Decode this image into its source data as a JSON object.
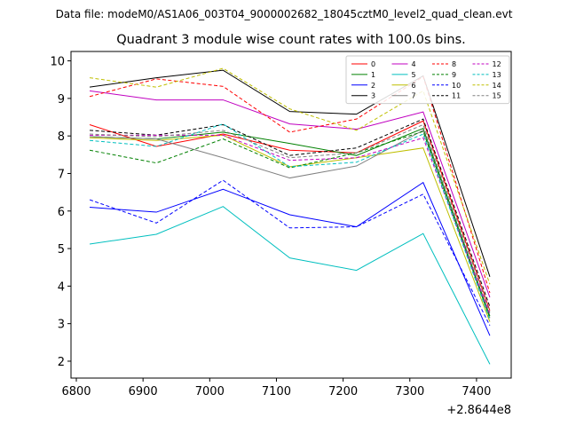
{
  "chart_data": {
    "type": "line",
    "suptitle": "Data file: modeM0/AS1A06_003T04_9000002682_18045cztM0_level2_quad_clean.evt",
    "title": "Quadrant 3 module wise count rates with 100.0s bins.",
    "xlabel": "",
    "ylabel": "",
    "x_offset_label": "+2.8644e8",
    "xlim": [
      6792,
      7452
    ],
    "ylim": [
      1.55,
      10.25
    ],
    "xticks": [
      6800,
      6900,
      7000,
      7100,
      7200,
      7300,
      7400
    ],
    "yticks": [
      2,
      3,
      4,
      5,
      6,
      7,
      8,
      9,
      10
    ],
    "legend_position": "upper right",
    "legend_columns": 4,
    "x": [
      6820,
      6920,
      7020,
      7120,
      7220,
      7320,
      7420
    ],
    "series": [
      {
        "name": "0",
        "color": "#ff0000",
        "style": "solid",
        "values": [
          8.3,
          7.72,
          8.05,
          7.62,
          7.55,
          8.4,
          3.35
        ]
      },
      {
        "name": "1",
        "color": "#008000",
        "style": "solid",
        "values": [
          7.98,
          7.92,
          8.1,
          7.8,
          7.48,
          8.2,
          3.2
        ]
      },
      {
        "name": "2",
        "color": "#0000ff",
        "style": "solid",
        "values": [
          6.1,
          5.97,
          6.58,
          5.9,
          5.58,
          6.76,
          2.68
        ]
      },
      {
        "name": "3",
        "color": "#000000",
        "style": "solid",
        "values": [
          9.3,
          9.55,
          9.75,
          8.65,
          8.58,
          9.6,
          4.25
        ]
      },
      {
        "name": "4",
        "color": "#c000c0",
        "style": "solid",
        "values": [
          9.2,
          8.96,
          8.96,
          8.32,
          8.18,
          8.64,
          3.7
        ]
      },
      {
        "name": "5",
        "color": "#00bfbf",
        "style": "solid",
        "values": [
          5.12,
          5.38,
          6.12,
          4.75,
          4.42,
          5.4,
          1.92
        ]
      },
      {
        "name": "6",
        "color": "#bfbf00",
        "style": "solid",
        "values": [
          7.95,
          7.88,
          8.02,
          7.18,
          7.42,
          7.68,
          3.05
        ]
      },
      {
        "name": "7",
        "color": "#808080",
        "style": "solid",
        "values": [
          7.98,
          7.92,
          7.42,
          6.88,
          7.2,
          8.15,
          3.15
        ]
      },
      {
        "name": "8",
        "color": "#ff0000",
        "style": "dashed",
        "values": [
          9.05,
          9.52,
          9.32,
          8.1,
          8.45,
          9.58,
          3.82
        ]
      },
      {
        "name": "9",
        "color": "#008000",
        "style": "dashed",
        "values": [
          7.62,
          7.28,
          7.92,
          7.15,
          7.55,
          8.12,
          3.15
        ]
      },
      {
        "name": "10",
        "color": "#0000ff",
        "style": "dashed",
        "values": [
          6.3,
          5.68,
          6.82,
          5.55,
          5.58,
          6.45,
          2.95
        ]
      },
      {
        "name": "11",
        "color": "#000000",
        "style": "dashed",
        "values": [
          8.15,
          8.02,
          8.3,
          7.48,
          7.68,
          8.45,
          3.45
        ]
      },
      {
        "name": "12",
        "color": "#c000c0",
        "style": "dashed",
        "values": [
          8.02,
          8.02,
          8.02,
          7.35,
          7.42,
          7.95,
          3.25
        ]
      },
      {
        "name": "13",
        "color": "#00bfbf",
        "style": "dashed",
        "values": [
          7.88,
          7.72,
          8.32,
          7.18,
          7.3,
          8.05,
          3.1
        ]
      },
      {
        "name": "14",
        "color": "#bfbf00",
        "style": "dashed",
        "values": [
          9.55,
          9.3,
          9.8,
          8.72,
          8.15,
          9.2,
          4.05
        ]
      },
      {
        "name": "15",
        "color": "#808080",
        "style": "dashed",
        "values": [
          8.05,
          7.98,
          8.15,
          7.42,
          7.55,
          8.3,
          3.3
        ]
      }
    ]
  }
}
